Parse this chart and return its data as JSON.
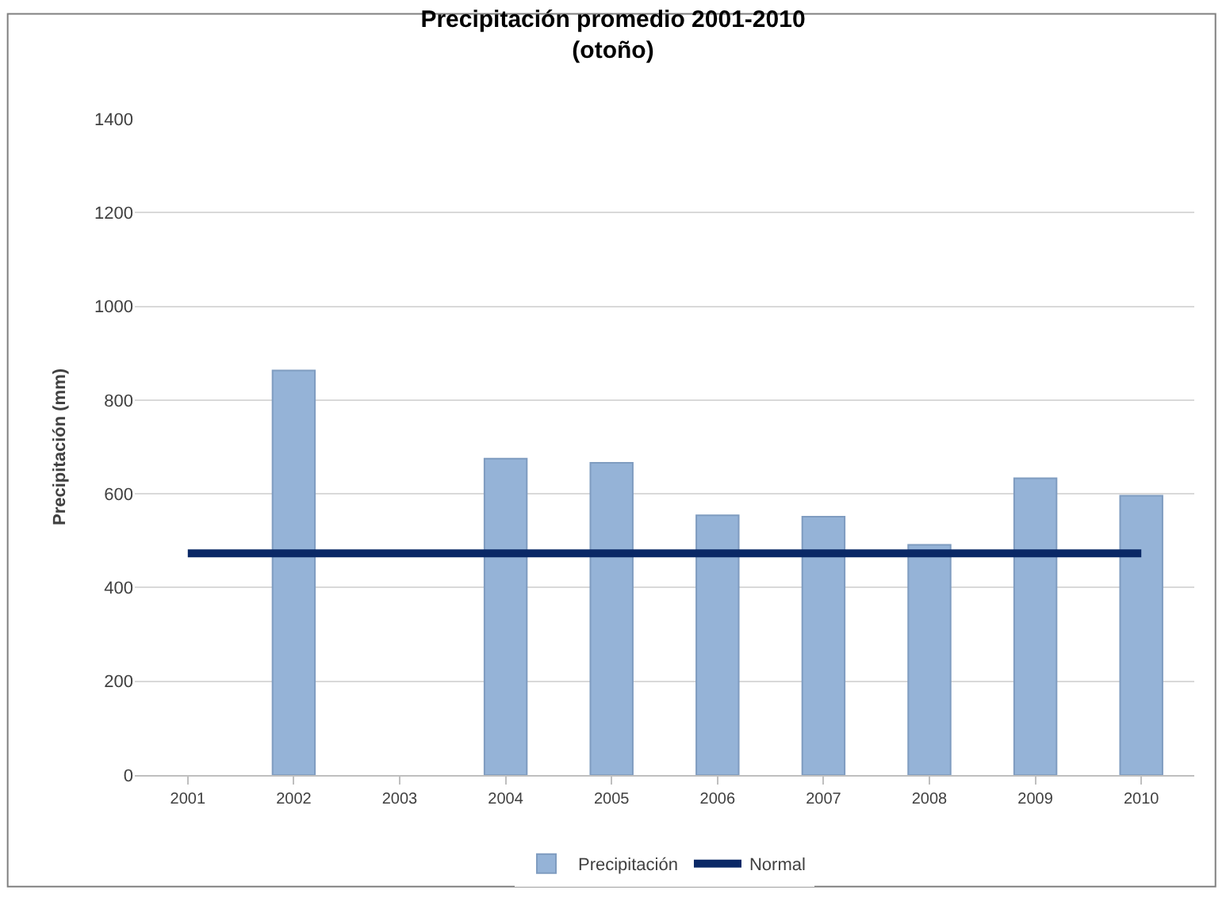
{
  "chart_data": {
    "type": "bar",
    "title": "Precipitación promedio 2001-2010\n(otoño)",
    "ylabel": "Precipitación (mm)",
    "categories": [
      "2001",
      "2002",
      "2003",
      "2004",
      "2005",
      "2006",
      "2007",
      "2008",
      "2009",
      "2010"
    ],
    "series": [
      {
        "name": "Precipitación",
        "color": "#95b3d7",
        "values": [
          null,
          863,
          null,
          675,
          666,
          554,
          551,
          491,
          633,
          596
        ]
      },
      {
        "name": "Normal",
        "type": "line",
        "color": "#0a2866",
        "values": [
          473,
          473,
          473,
          473,
          473,
          473,
          473,
          473,
          473,
          473
        ]
      }
    ],
    "ylim": [
      0,
      1400
    ],
    "yticks": [
      0,
      200,
      400,
      600,
      800,
      1000,
      1200,
      1400
    ],
    "grid": "y",
    "legend": "bottom",
    "marker": "none",
    "line_style": "solid"
  }
}
